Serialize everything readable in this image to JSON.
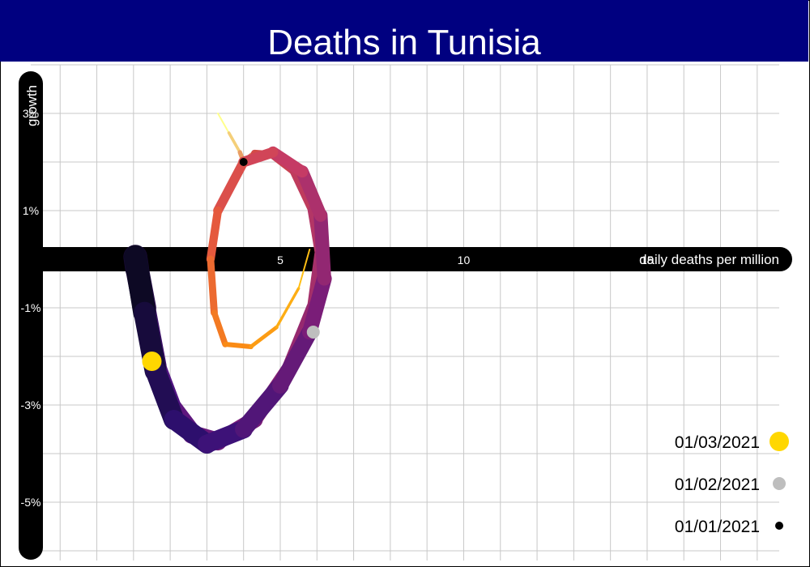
{
  "header": {
    "title": "Deaths in Tunisia"
  },
  "colors": {
    "banner": "#000080",
    "axis": "#000000",
    "grid": "#c8c8c8",
    "marker_latest": "#FFD700",
    "marker_mid": "#BEBEBE",
    "marker_first": "#000000"
  },
  "chart_data": {
    "type": "line",
    "title": "Deaths in Tunisia",
    "xlabel": "daily deaths per million",
    "ylabel": "growth",
    "xlim": [
      -1.8,
      18.6
    ],
    "ylim": [
      -6.2,
      4.0
    ],
    "x_ticks": [
      5,
      10,
      15
    ],
    "x_tick_labels": [
      "5",
      "10",
      "15"
    ],
    "y_ticks": [
      3,
      1,
      -1,
      -3,
      -5
    ],
    "y_tick_labels": [
      "3%",
      "1%",
      "-1%",
      "-3%",
      "-5%"
    ],
    "grid": true,
    "legend_position": "bottom-right",
    "legend": [
      {
        "label": "01/03/2021",
        "marker": "large-gold-dot"
      },
      {
        "label": "01/02/2021",
        "marker": "medium-grey-dot"
      },
      {
        "label": "01/01/2021",
        "marker": "small-black-dot"
      }
    ],
    "series": [
      {
        "values": [
          [
            3.3,
            3.0
          ],
          [
            3.6,
            2.6
          ],
          [
            3.9,
            2.2
          ],
          [
            4.0,
            2.0
          ],
          [
            4.3,
            2.18
          ],
          [
            4.8,
            2.15
          ],
          [
            5.4,
            1.8
          ],
          [
            5.9,
            1.0
          ],
          [
            6.1,
            0.1
          ],
          [
            5.9,
            -1.0
          ],
          [
            5.2,
            -2.3
          ],
          [
            4.3,
            -3.3
          ],
          [
            3.3,
            -3.75
          ],
          [
            2.6,
            -3.6
          ],
          [
            2.0,
            -3.0
          ],
          [
            1.6,
            -2.2
          ],
          [
            1.3,
            -1.0
          ],
          [
            1.1,
            -0.2
          ],
          [
            1.05,
            0.05
          ],
          [
            1.3,
            -1.1
          ],
          [
            1.6,
            -2.3
          ],
          [
            2.1,
            -3.3
          ],
          [
            3.0,
            -3.8
          ],
          [
            4.0,
            -3.5
          ],
          [
            5.0,
            -2.6
          ],
          [
            5.8,
            -1.5
          ],
          [
            6.2,
            -0.4
          ],
          [
            6.1,
            0.9
          ],
          [
            5.6,
            1.8
          ],
          [
            4.8,
            2.2
          ],
          [
            4.0,
            2.0
          ],
          [
            3.3,
            1.0
          ],
          [
            3.1,
            0.0
          ],
          [
            3.2,
            -1.1
          ],
          [
            3.5,
            -1.75
          ],
          [
            4.2,
            -1.8
          ],
          [
            4.9,
            -1.4
          ],
          [
            5.5,
            -0.6
          ],
          [
            5.8,
            0.2
          ]
        ]
      }
    ],
    "highlights": [
      {
        "date": "01/01/2021",
        "x": 4.0,
        "y": 2.0
      },
      {
        "date": "01/02/2021",
        "x": 5.9,
        "y": -1.5
      },
      {
        "date": "01/03/2021",
        "x": 1.5,
        "y": -2.1
      }
    ]
  }
}
